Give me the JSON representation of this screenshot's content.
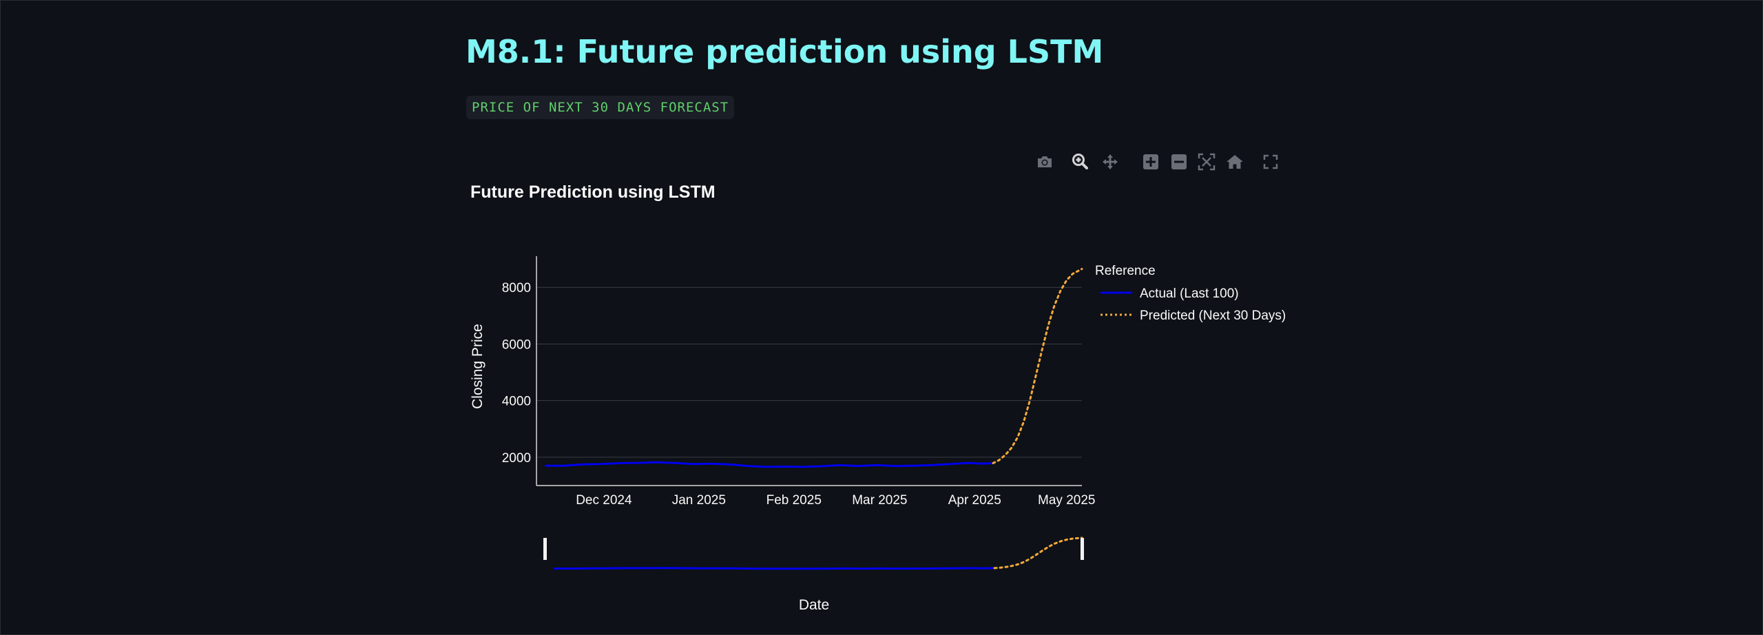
{
  "page": {
    "title": "M8.1: Future prediction using LSTM",
    "subtitle": "PRICE OF NEXT 30 DAYS FORECAST"
  },
  "modebar": {
    "icons": [
      "camera-icon",
      "zoom-icon",
      "pan-icon",
      "zoom-in-icon",
      "zoom-out-icon",
      "autoscale-icon",
      "reset-axes-icon",
      "fullscreen-icon"
    ]
  },
  "colors": {
    "accent_title": "#7ff5f5",
    "subtitle": "#5fcf6c",
    "actual": "#0000ee",
    "predicted": "#f2a93b",
    "background": "#0e1117"
  },
  "chart_data": {
    "type": "line",
    "title": "Future Prediction using LSTM",
    "xlabel": "Date",
    "ylabel": "Closing Price",
    "x_ticks": [
      "Dec 2024",
      "Jan 2025",
      "Feb 2025",
      "Mar 2025",
      "Apr 2025",
      "May 2025"
    ],
    "x_tick_dates": [
      "2024-12-01",
      "2025-01-01",
      "2025-02-01",
      "2025-03-01",
      "2025-04-01",
      "2025-05-01"
    ],
    "y_ticks": [
      2000,
      4000,
      6000,
      8000
    ],
    "ylim": [
      1000,
      9100
    ],
    "xlim": [
      "2024-11-09",
      "2025-05-06"
    ],
    "grid": true,
    "rangeslider": true,
    "legend": {
      "title": "Reference",
      "position": "top-right"
    },
    "series": [
      {
        "name": "Actual (Last 100)",
        "line": "solid",
        "x": [
          "2024-11-12",
          "2024-11-18",
          "2024-11-24",
          "2024-11-30",
          "2024-12-06",
          "2024-12-12",
          "2024-12-18",
          "2024-12-24",
          "2024-12-30",
          "2025-01-05",
          "2025-01-11",
          "2025-01-17",
          "2025-01-23",
          "2025-01-29",
          "2025-02-04",
          "2025-02-10",
          "2025-02-16",
          "2025-02-22",
          "2025-02-28",
          "2025-03-06",
          "2025-03-12",
          "2025-03-18",
          "2025-03-24",
          "2025-03-30",
          "2025-04-03",
          "2025-04-07"
        ],
        "y": [
          1700,
          1700,
          1750,
          1760,
          1790,
          1800,
          1820,
          1800,
          1760,
          1770,
          1750,
          1690,
          1660,
          1670,
          1660,
          1680,
          1720,
          1690,
          1720,
          1690,
          1700,
          1720,
          1760,
          1800,
          1770,
          1790
        ]
      },
      {
        "name": "Predicted (Next 30 Days)",
        "line": "dotted",
        "x": [
          "2025-04-07",
          "2025-04-09",
          "2025-04-11",
          "2025-04-13",
          "2025-04-15",
          "2025-04-17",
          "2025-04-19",
          "2025-04-21",
          "2025-04-23",
          "2025-04-25",
          "2025-04-27",
          "2025-04-29",
          "2025-05-01",
          "2025-05-03",
          "2025-05-06"
        ],
        "y": [
          1790,
          1900,
          2080,
          2330,
          2700,
          3250,
          4000,
          4900,
          5800,
          6650,
          7350,
          7880,
          8250,
          8480,
          8650
        ]
      }
    ]
  }
}
